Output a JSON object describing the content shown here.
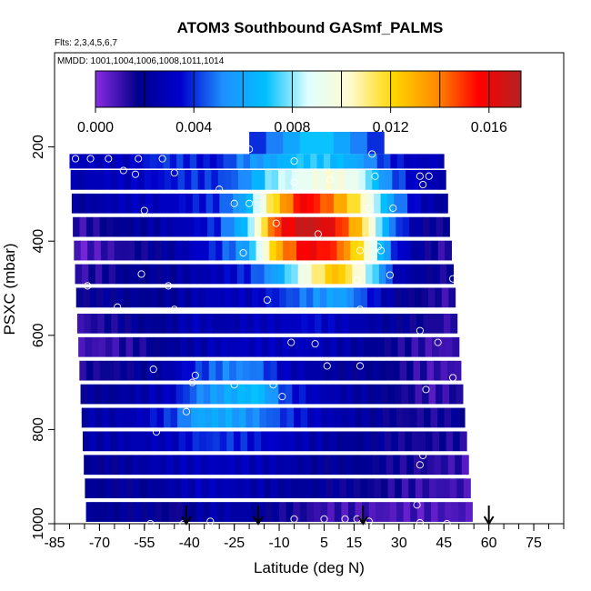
{
  "chart_data": {
    "type": "heatmap",
    "title": "ATOM3 Southbound GASmf_PALMS",
    "flights_note": "Flts: 2,3,4,5,6,7",
    "dates_note": "MMDD: 1001,1004,1006,1008,1011,1014",
    "xlabel": "Latitude (deg N)",
    "ylabel": "PSXC (mbar)",
    "xlim": [
      -85,
      85
    ],
    "ylim": [
      1000,
      0
    ],
    "x_ticks": [
      -85,
      -70,
      -55,
      -40,
      -25,
      -10,
      5,
      15,
      30,
      45,
      60,
      75
    ],
    "x_minor_step": 5,
    "y_ticks": [
      200,
      400,
      600,
      800,
      1000
    ],
    "colorbar": {
      "min": 0.0,
      "max": 0.0173,
      "ticks": [
        "0.000",
        "0.004",
        "0.008",
        "0.012",
        "0.016"
      ],
      "tick_values": [
        0,
        0.004,
        0.008,
        0.012,
        0.016
      ],
      "divisions": [
        0.002,
        0.004,
        0.006,
        0.008,
        0.01,
        0.012,
        0.014,
        0.016
      ],
      "colors": [
        "#8a2be2",
        "#00008b",
        "#0000cd",
        "#1e90ff",
        "#00bfff",
        "#e0ffff",
        "#fffacd",
        "#ffd700",
        "#ff8c00",
        "#ff0000",
        "#b22222"
      ]
    },
    "heatmap_grid": {
      "latitudes": [
        -80,
        -70,
        -60,
        -50,
        -40,
        -30,
        -20,
        -10,
        0,
        10,
        20,
        30,
        40,
        50
      ],
      "pressures": [
        225,
        270,
        320,
        370,
        420,
        470,
        520,
        575,
        625,
        675,
        725,
        775,
        825,
        875,
        925,
        975
      ],
      "rows": [
        [
          0.003,
          0.003,
          0.003,
          0.004,
          0.004,
          0.0035,
          0.005,
          0.006,
          0.007,
          0.007,
          0.006,
          0.004,
          0.003,
          0.003
        ],
        [
          0.0025,
          0.003,
          0.003,
          0.0035,
          0.004,
          0.004,
          0.005,
          0.008,
          0.009,
          0.01,
          0.009,
          0.005,
          0.003,
          0.0025
        ],
        [
          0.002,
          0.0025,
          0.003,
          0.003,
          0.0035,
          0.004,
          0.006,
          0.012,
          0.016,
          0.014,
          0.011,
          0.006,
          0.003,
          0.002
        ],
        [
          0.001,
          0.0015,
          0.002,
          0.0025,
          0.003,
          0.004,
          0.007,
          0.015,
          0.017,
          0.016,
          0.012,
          0.005,
          0.002,
          0.0015
        ],
        [
          0.0005,
          0.001,
          0.0015,
          0.002,
          0.003,
          0.004,
          0.006,
          0.013,
          0.016,
          0.015,
          0.011,
          0.004,
          0.002,
          0.001
        ],
        [
          0.001,
          0.0015,
          0.002,
          0.002,
          0.0025,
          0.003,
          0.004,
          0.006,
          0.01,
          0.013,
          0.009,
          0.003,
          0.002,
          0.0015
        ],
        [
          0.0015,
          0.002,
          0.002,
          0.002,
          0.0025,
          0.003,
          0.003,
          0.004,
          0.005,
          0.006,
          0.004,
          0.002,
          0.0015,
          0.001
        ],
        [
          0.001,
          0.0015,
          0.002,
          0.002,
          0.003,
          0.0025,
          0.003,
          0.003,
          0.0035,
          0.003,
          0.0025,
          0.002,
          0.0015,
          0.001
        ],
        [
          0.001,
          0.001,
          0.0015,
          0.002,
          0.0025,
          0.003,
          0.003,
          0.003,
          0.003,
          0.0025,
          0.002,
          0.0015,
          0.001,
          0.001
        ],
        [
          0.0015,
          0.0015,
          0.002,
          0.0025,
          0.004,
          0.005,
          0.005,
          0.003,
          0.0025,
          0.002,
          0.002,
          0.0015,
          0.001,
          0.001
        ],
        [
          0.002,
          0.002,
          0.0025,
          0.003,
          0.005,
          0.006,
          0.007,
          0.004,
          0.003,
          0.0025,
          0.002,
          0.0015,
          0.001,
          0.0015
        ],
        [
          0.0025,
          0.0025,
          0.003,
          0.004,
          0.006,
          0.006,
          0.005,
          0.004,
          0.003,
          0.0025,
          0.002,
          0.0015,
          0.0015,
          0.002
        ],
        [
          0.0025,
          0.0025,
          0.0028,
          0.003,
          0.004,
          0.004,
          0.0035,
          0.003,
          0.0025,
          0.002,
          0.002,
          0.0015,
          0.0015,
          0.0015
        ],
        [
          0.002,
          0.002,
          0.0025,
          0.0028,
          0.003,
          0.003,
          0.0028,
          0.0025,
          0.002,
          0.002,
          0.0018,
          0.0015,
          0.0012,
          0.001
        ],
        [
          0.002,
          0.002,
          0.002,
          0.0025,
          0.003,
          0.0028,
          0.0025,
          0.0022,
          0.002,
          0.0018,
          0.0015,
          0.0012,
          0.001,
          0.001
        ],
        [
          0.002,
          0.002,
          0.002,
          0.0015,
          0.0025,
          0.0025,
          0.002,
          0.0015,
          0.001,
          0.001,
          0.0008,
          0.0008,
          0.0008,
          0.0008
        ]
      ]
    },
    "upper_band": {
      "lat_start": -20,
      "lat_end": 25,
      "p_top": 168,
      "p_bottom": 215,
      "values": [
        0.004,
        0.005,
        0.006,
        0.007,
        0.007,
        0.006,
        0.005,
        0.004
      ]
    },
    "observation_points": [
      [
        -78,
        225
      ],
      [
        -73,
        225
      ],
      [
        -67,
        225
      ],
      [
        -57,
        225
      ],
      [
        -49,
        225
      ],
      [
        -20,
        205
      ],
      [
        -5,
        230
      ],
      [
        21,
        215
      ],
      [
        -62,
        250
      ],
      [
        -58,
        258
      ],
      [
        -45,
        255
      ],
      [
        22,
        262
      ],
      [
        37,
        262
      ],
      [
        40,
        262
      ],
      [
        -30,
        290
      ],
      [
        -5,
        275
      ],
      [
        7,
        270
      ],
      [
        38,
        280
      ],
      [
        -55,
        335
      ],
      [
        -25,
        320
      ],
      [
        -20,
        320
      ],
      [
        20,
        330
      ],
      [
        28,
        330
      ],
      [
        -11,
        362
      ],
      [
        3,
        385
      ],
      [
        17,
        420
      ],
      [
        -22,
        425
      ],
      [
        23,
        412
      ],
      [
        24,
        420
      ],
      [
        -56,
        470
      ],
      [
        -74,
        495
      ],
      [
        -47,
        495
      ],
      [
        16,
        482
      ],
      [
        27,
        472
      ],
      [
        48,
        480
      ],
      [
        -14,
        525
      ],
      [
        -64,
        540
      ],
      [
        -45,
        545
      ],
      [
        17,
        545
      ],
      [
        37,
        590
      ],
      [
        43,
        615
      ],
      [
        -6,
        615
      ],
      [
        2,
        618
      ],
      [
        -52,
        672
      ],
      [
        -38,
        685
      ],
      [
        -39,
        700
      ],
      [
        -25,
        705
      ],
      [
        -12,
        705
      ],
      [
        6,
        665
      ],
      [
        17,
        665
      ],
      [
        -9,
        730
      ],
      [
        39,
        715
      ],
      [
        48,
        690
      ],
      [
        -41,
        762
      ],
      [
        -51,
        805
      ],
      [
        38,
        855
      ],
      [
        37,
        875
      ],
      [
        -79,
        960
      ],
      [
        36,
        960
      ],
      [
        -53,
        1000
      ],
      [
        -42,
        1000
      ],
      [
        -33,
        995
      ],
      [
        -5,
        990
      ],
      [
        5,
        990
      ],
      [
        12,
        990
      ],
      [
        16,
        990
      ],
      [
        20,
        995
      ],
      [
        37,
        998
      ],
      [
        46,
        1000
      ],
      [
        57,
        990
      ]
    ],
    "arrows_at_lat": [
      -41,
      -17,
      18,
      60
    ]
  }
}
